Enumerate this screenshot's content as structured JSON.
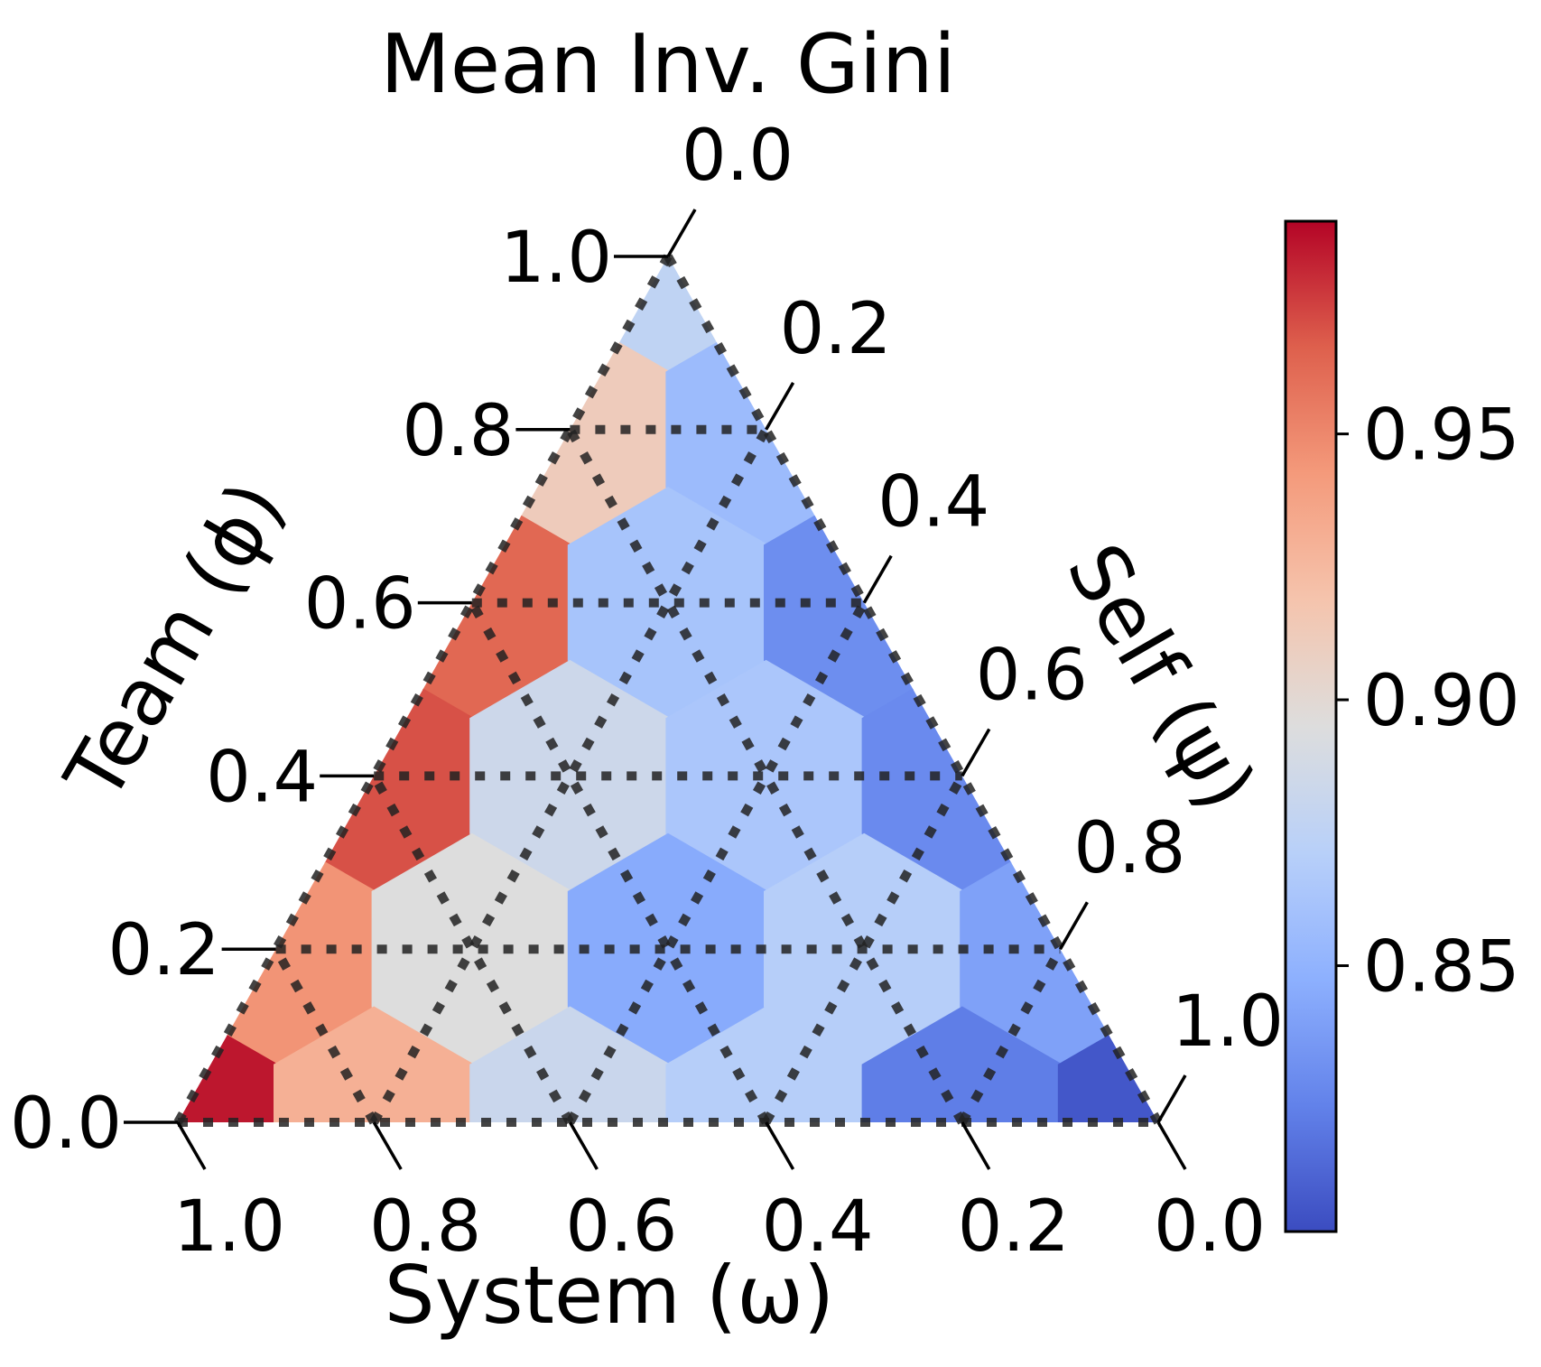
{
  "chart_data": {
    "type": "heatmap",
    "subtype": "ternary-hexbin",
    "title": "Mean Inv. Gini",
    "axes": {
      "bottom": {
        "label": "System (ω)",
        "ticks": [
          "1.0",
          "0.8",
          "0.6",
          "0.4",
          "0.2",
          "0.0"
        ]
      },
      "left": {
        "label": "Team (ϕ)",
        "ticks": [
          "0.0",
          "0.2",
          "0.4",
          "0.6",
          "0.8",
          "1.0"
        ]
      },
      "right": {
        "label": "Self (ψ)",
        "ticks": [
          "0.0",
          "0.2",
          "0.4",
          "0.6",
          "0.8",
          "1.0"
        ]
      }
    },
    "grid": true,
    "colormap": "coolwarm",
    "colorbar": {
      "min": 0.8,
      "max": 0.99,
      "ticks": [
        0.85,
        0.9,
        0.95
      ],
      "tick_labels": [
        "0.85",
        "0.90",
        "0.95"
      ]
    },
    "cells": [
      {
        "team": 1.0,
        "self": 0.0,
        "value": 0.876
      },
      {
        "team": 0.8,
        "self": 0.0,
        "value": 0.912
      },
      {
        "team": 0.8,
        "self": 0.2,
        "value": 0.856
      },
      {
        "team": 0.6,
        "self": 0.0,
        "value": 0.963
      },
      {
        "team": 0.6,
        "self": 0.2,
        "value": 0.862
      },
      {
        "team": 0.6,
        "self": 0.4,
        "value": 0.83
      },
      {
        "team": 0.4,
        "self": 0.0,
        "value": 0.97
      },
      {
        "team": 0.4,
        "self": 0.2,
        "value": 0.884
      },
      {
        "team": 0.4,
        "self": 0.4,
        "value": 0.864
      },
      {
        "team": 0.4,
        "self": 0.6,
        "value": 0.828
      },
      {
        "team": 0.2,
        "self": 0.0,
        "value": 0.945
      },
      {
        "team": 0.2,
        "self": 0.2,
        "value": 0.895
      },
      {
        "team": 0.2,
        "self": 0.4,
        "value": 0.845
      },
      {
        "team": 0.2,
        "self": 0.6,
        "value": 0.87
      },
      {
        "team": 0.2,
        "self": 0.8,
        "value": 0.84
      },
      {
        "team": 0.0,
        "self": 0.0,
        "value": 0.985
      },
      {
        "team": 0.0,
        "self": 0.2,
        "value": 0.93
      },
      {
        "team": 0.0,
        "self": 0.4,
        "value": 0.882
      },
      {
        "team": 0.0,
        "self": 0.6,
        "value": 0.87
      },
      {
        "team": 0.0,
        "self": 0.8,
        "value": 0.822
      },
      {
        "team": 0.0,
        "self": 1.0,
        "value": 0.805
      }
    ]
  }
}
